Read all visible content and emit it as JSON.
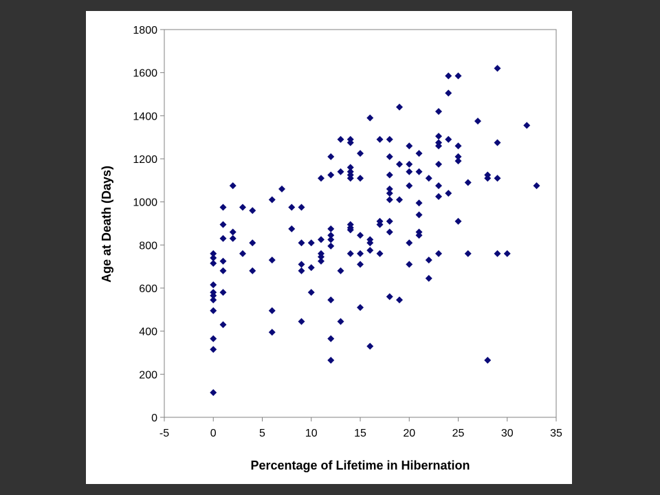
{
  "chart_data": {
    "type": "scatter",
    "title": "",
    "xlabel": "Percentage of Lifetime in Hibernation",
    "ylabel": "Age at Death (Days)",
    "xlim": [
      -5,
      35
    ],
    "ylim": [
      0,
      1800
    ],
    "xticks": [
      "-5",
      "0",
      "5",
      "10",
      "15",
      "20",
      "25",
      "30",
      "35"
    ],
    "yticks": [
      "0",
      "200",
      "400",
      "600",
      "800",
      "1000",
      "1200",
      "1400",
      "1600",
      "1800"
    ],
    "grid": false,
    "legend": "none",
    "marker_color": "#0A0A78",
    "marker": "diamond",
    "points": [
      [
        0,
        115
      ],
      [
        0,
        315
      ],
      [
        0,
        365
      ],
      [
        0,
        495
      ],
      [
        0,
        545
      ],
      [
        0,
        565
      ],
      [
        0,
        580
      ],
      [
        0,
        615
      ],
      [
        0,
        715
      ],
      [
        0,
        740
      ],
      [
        0,
        760
      ],
      [
        1,
        430
      ],
      [
        1,
        580
      ],
      [
        1,
        680
      ],
      [
        1,
        725
      ],
      [
        1,
        830
      ],
      [
        1,
        895
      ],
      [
        1,
        975
      ],
      [
        2,
        830
      ],
      [
        2,
        860
      ],
      [
        2,
        1075
      ],
      [
        3,
        760
      ],
      [
        3,
        975
      ],
      [
        4,
        680
      ],
      [
        4,
        810
      ],
      [
        4,
        960
      ],
      [
        6,
        395
      ],
      [
        6,
        495
      ],
      [
        6,
        730
      ],
      [
        6,
        1010
      ],
      [
        7,
        1060
      ],
      [
        8,
        875
      ],
      [
        8,
        975
      ],
      [
        9,
        445
      ],
      [
        9,
        680
      ],
      [
        9,
        710
      ],
      [
        9,
        810
      ],
      [
        9,
        975
      ],
      [
        10,
        580
      ],
      [
        10,
        695
      ],
      [
        10,
        810
      ],
      [
        11,
        725
      ],
      [
        11,
        745
      ],
      [
        11,
        760
      ],
      [
        11,
        825
      ],
      [
        11,
        1110
      ],
      [
        12,
        265
      ],
      [
        12,
        365
      ],
      [
        12,
        545
      ],
      [
        12,
        795
      ],
      [
        12,
        825
      ],
      [
        12,
        845
      ],
      [
        12,
        875
      ],
      [
        12,
        1125
      ],
      [
        12,
        1210
      ],
      [
        13,
        445
      ],
      [
        13,
        680
      ],
      [
        13,
        1140
      ],
      [
        13,
        1290
      ],
      [
        14,
        760
      ],
      [
        14,
        870
      ],
      [
        14,
        880
      ],
      [
        14,
        895
      ],
      [
        14,
        1110
      ],
      [
        14,
        1125
      ],
      [
        14,
        1140
      ],
      [
        14,
        1160
      ],
      [
        14,
        1275
      ],
      [
        14,
        1290
      ],
      [
        15,
        510
      ],
      [
        15,
        710
      ],
      [
        15,
        760
      ],
      [
        15,
        845
      ],
      [
        15,
        1110
      ],
      [
        15,
        1225
      ],
      [
        16,
        330
      ],
      [
        16,
        775
      ],
      [
        16,
        810
      ],
      [
        16,
        825
      ],
      [
        16,
        1390
      ],
      [
        17,
        760
      ],
      [
        17,
        895
      ],
      [
        17,
        910
      ],
      [
        17,
        1290
      ],
      [
        18,
        560
      ],
      [
        18,
        860
      ],
      [
        18,
        910
      ],
      [
        18,
        1010
      ],
      [
        18,
        1040
      ],
      [
        18,
        1060
      ],
      [
        18,
        1125
      ],
      [
        18,
        1210
      ],
      [
        18,
        1290
      ],
      [
        19,
        545
      ],
      [
        19,
        1010
      ],
      [
        19,
        1175
      ],
      [
        19,
        1440
      ],
      [
        20,
        710
      ],
      [
        20,
        810
      ],
      [
        20,
        1075
      ],
      [
        20,
        1140
      ],
      [
        20,
        1175
      ],
      [
        20,
        1260
      ],
      [
        21,
        845
      ],
      [
        21,
        860
      ],
      [
        21,
        940
      ],
      [
        21,
        995
      ],
      [
        21,
        1140
      ],
      [
        21,
        1225
      ],
      [
        22,
        645
      ],
      [
        22,
        730
      ],
      [
        22,
        1110
      ],
      [
        23,
        760
      ],
      [
        23,
        1025
      ],
      [
        23,
        1075
      ],
      [
        23,
        1175
      ],
      [
        23,
        1260
      ],
      [
        23,
        1275
      ],
      [
        23,
        1305
      ],
      [
        23,
        1420
      ],
      [
        24,
        1040
      ],
      [
        24,
        1290
      ],
      [
        24,
        1505
      ],
      [
        24,
        1585
      ],
      [
        25,
        910
      ],
      [
        25,
        1190
      ],
      [
        25,
        1210
      ],
      [
        25,
        1260
      ],
      [
        25,
        1585
      ],
      [
        26,
        760
      ],
      [
        26,
        1090
      ],
      [
        27,
        1375
      ],
      [
        28,
        265
      ],
      [
        28,
        1110
      ],
      [
        28,
        1125
      ],
      [
        29,
        760
      ],
      [
        29,
        1110
      ],
      [
        29,
        1275
      ],
      [
        29,
        1620
      ],
      [
        30,
        760
      ],
      [
        32,
        1355
      ],
      [
        33,
        1075
      ]
    ]
  }
}
